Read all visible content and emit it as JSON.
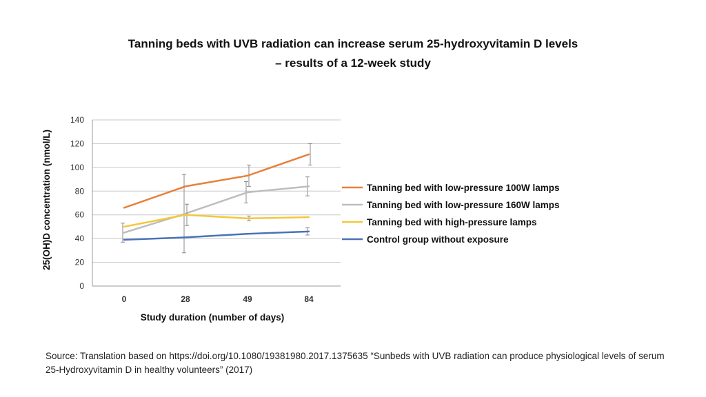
{
  "title": {
    "line1": "Tanning beds with UVB radiation can increase serum 25-hydroxyvitamin D levels",
    "line2": "– results of a 12-week study"
  },
  "source": "Source: Translation based on https://doi.org/10.1080/19381980.2017.1375635 “Sunbeds with UVB radiation can produce physiological levels of serum 25-Hydroxyvitamin D in healthy volunteers” (2017)",
  "chart_data": {
    "type": "line",
    "categories": [
      "0",
      "28",
      "49",
      "84"
    ],
    "xlabel": "Study duration (number of days)",
    "ylabel": "25(OH)D concentration (nmol/L)",
    "ylim": [
      0,
      140
    ],
    "yticks": [
      0,
      20,
      40,
      60,
      80,
      100,
      120,
      140
    ],
    "grid": true,
    "legend_position": "right",
    "series": [
      {
        "name": "Tanning bed with low-pressure 100W lamps",
        "color": "#E8803A",
        "values": [
          66,
          84,
          93,
          111
        ],
        "err": [
          null,
          null,
          9,
          9
        ]
      },
      {
        "name": "Tanning bed with low-pressure 160W lamps",
        "color": "#BDBDBD",
        "values": [
          45,
          61,
          79,
          84
        ],
        "err": [
          8,
          33,
          9,
          8
        ]
      },
      {
        "name": "Tanning bed with high-pressure lamps",
        "color": "#F4C73A",
        "values": [
          50,
          60,
          57,
          58
        ],
        "err": [
          null,
          9,
          2,
          null
        ]
      },
      {
        "name": "Control group without exposure",
        "color": "#4A72B8",
        "values": [
          39,
          41,
          44,
          46
        ],
        "err": [
          null,
          null,
          null,
          3
        ]
      }
    ]
  }
}
